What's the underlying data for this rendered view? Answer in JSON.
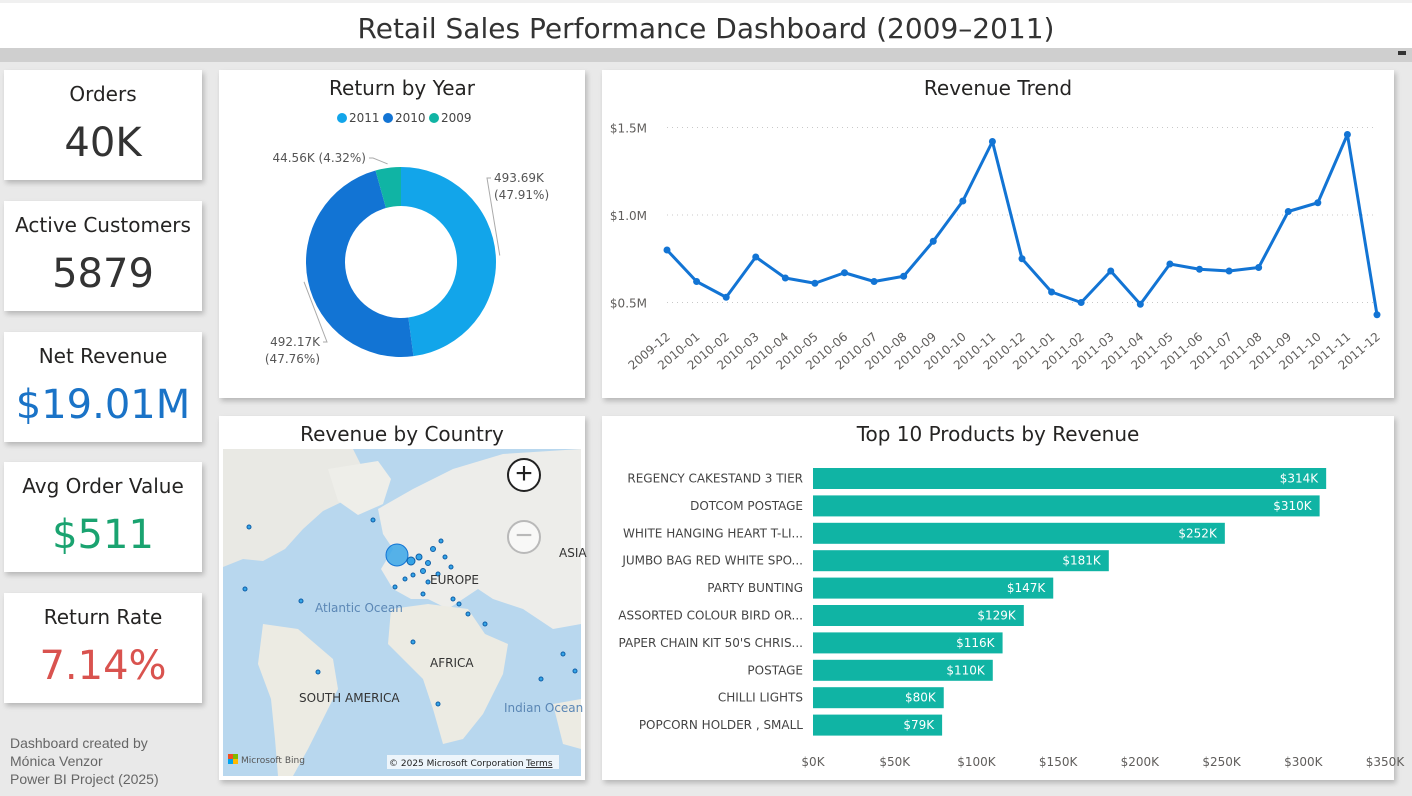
{
  "title": "Retail Sales Performance Dashboard (2009–2011)",
  "kpis": [
    {
      "label": "Orders",
      "value": "40K",
      "color": "#333333"
    },
    {
      "label": "Active Customers",
      "value": "5879",
      "color": "#333333"
    },
    {
      "label": "Net Revenue",
      "value": "$19.01M",
      "color": "#1a73c7"
    },
    {
      "label": "Avg Order Value",
      "value": "$511",
      "color": "#1aa370"
    },
    {
      "label": "Return Rate",
      "value": "7.14%",
      "color": "#d9534f"
    }
  ],
  "footer": {
    "line1": "Dashboard created by",
    "line2": "Mónica Venzor",
    "line3": "Power BI Project (2025)"
  },
  "donut": {
    "title": "Return by Year",
    "legend": [
      {
        "name": "2011",
        "color": "#12a5ea"
      },
      {
        "name": "2010",
        "color": "#1274d4"
      },
      {
        "name": "2009",
        "color": "#10b4a4"
      }
    ],
    "slices": [
      {
        "name": "2011",
        "value": 493.69,
        "label1": "493.69K",
        "label2": "(47.91%)",
        "color": "#12a5ea"
      },
      {
        "name": "2010",
        "value": 492.17,
        "label1": "492.17K",
        "label2": "(47.76%)",
        "color": "#1274d4"
      },
      {
        "name": "2009",
        "value": 44.56,
        "label1": "44.56K (4.32%)",
        "label2": "",
        "color": "#10b4a4"
      }
    ]
  },
  "trend": {
    "title": "Revenue Trend",
    "ytick_labels": [
      "$1.5M",
      "$1.0M",
      "$0.5M"
    ],
    "ytick_values": [
      1.5,
      1.0,
      0.5
    ]
  },
  "map": {
    "title": "Revenue by Country",
    "labels": {
      "europe": "EUROPE",
      "asia": "ASIA",
      "atlantic": "Atlantic Ocean",
      "africa": "AFRICA",
      "south_america": "SOUTH AMERICA",
      "indian": "Indian Ocean"
    },
    "zoom_in": "+",
    "zoom_out": "−",
    "bing": "Microsoft Bing",
    "copyright": "© 2025 Microsoft Corporation",
    "terms": "Terms"
  },
  "bars": {
    "title": "Top 10 Products by Revenue",
    "xtick_labels": [
      "$0K",
      "$50K",
      "$100K",
      "$150K",
      "$200K",
      "$250K",
      "$300K",
      "$350K"
    ],
    "xtick_values": [
      0,
      50,
      100,
      150,
      200,
      250,
      300,
      350
    ]
  },
  "chart_data": [
    {
      "type": "pie",
      "title": "Return by Year",
      "categories": [
        "2011",
        "2010",
        "2009"
      ],
      "values": [
        493.69,
        492.17,
        44.56
      ],
      "unit": "K",
      "legend": "top"
    },
    {
      "type": "line",
      "title": "Revenue Trend",
      "x": [
        "2009-12",
        "2010-01",
        "2010-02",
        "2010-03",
        "2010-04",
        "2010-05",
        "2010-06",
        "2010-07",
        "2010-08",
        "2010-09",
        "2010-10",
        "2010-11",
        "2010-12",
        "2011-01",
        "2011-02",
        "2011-03",
        "2011-04",
        "2011-05",
        "2011-06",
        "2011-07",
        "2011-08",
        "2011-09",
        "2011-10",
        "2011-11",
        "2011-12"
      ],
      "series": [
        {
          "values": [
            0.8,
            0.62,
            0.53,
            0.76,
            0.64,
            0.61,
            0.67,
            0.62,
            0.65,
            0.85,
            1.08,
            1.42,
            0.75,
            0.56,
            0.5,
            0.68,
            0.49,
            0.72,
            0.69,
            0.68,
            0.7,
            1.02,
            1.07,
            1.46,
            0.43
          ],
          "color": "#1274d4"
        }
      ],
      "ylim": [
        0.4,
        1.6
      ],
      "grid": true
    },
    {
      "type": "bar",
      "orientation": "horizontal",
      "title": "Top 10 Products by Revenue",
      "categories": [
        "REGENCY CAKESTAND 3 TIER",
        "DOTCOM POSTAGE",
        "WHITE HANGING HEART T-LI...",
        "JUMBO BAG RED WHITE SPO...",
        "PARTY BUNTING",
        "ASSORTED COLOUR BIRD OR...",
        "PAPER CHAIN KIT 50'S CHRIS...",
        "POSTAGE",
        "CHILLI LIGHTS",
        "POPCORN HOLDER , SMALL"
      ],
      "values": [
        314,
        310,
        252,
        181,
        147,
        129,
        116,
        110,
        80,
        79
      ],
      "value_labels": [
        "$314K",
        "$310K",
        "$252K",
        "$181K",
        "$147K",
        "$129K",
        "$116K",
        "$110K",
        "$80K",
        "$79K"
      ],
      "xlim": [
        0,
        350
      ],
      "color": "#10b4a4"
    }
  ]
}
